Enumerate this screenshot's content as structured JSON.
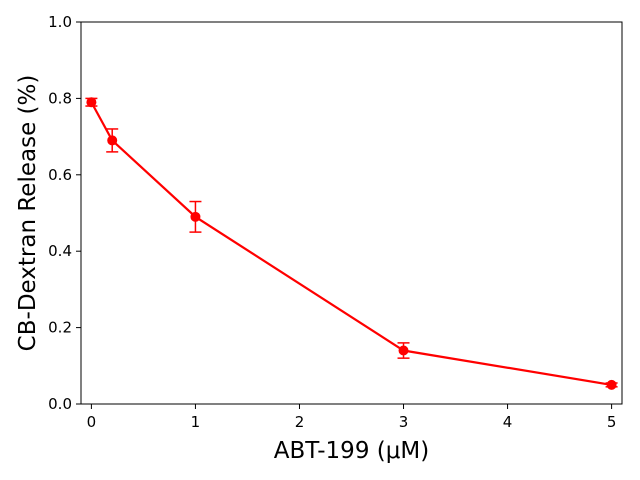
{
  "chart_data": {
    "type": "line",
    "title": "",
    "xlabel": "ABT-199 (μM)",
    "ylabel": "CB-Dextran Release (%)",
    "xlim": [
      -0.1,
      5.1
    ],
    "ylim": [
      0.0,
      1.0
    ],
    "xticks": [
      0,
      1,
      2,
      3,
      4,
      5
    ],
    "xtick_labels": [
      "0",
      "1",
      "2",
      "3",
      "4",
      "5"
    ],
    "yticks": [
      0.0,
      0.2,
      0.4,
      0.6,
      0.8,
      1.0
    ],
    "ytick_labels": [
      "0.0",
      "0.2",
      "0.4",
      "0.6",
      "0.8",
      "1.0"
    ],
    "grid": false,
    "legend": "none",
    "series": [
      {
        "color": "#ff0000",
        "marker": "circle",
        "x": [
          0,
          0.2,
          1,
          3,
          5
        ],
        "y": [
          0.79,
          0.69,
          0.49,
          0.14,
          0.05
        ],
        "error": [
          0.01,
          0.03,
          0.04,
          0.02,
          0.005
        ]
      }
    ]
  }
}
